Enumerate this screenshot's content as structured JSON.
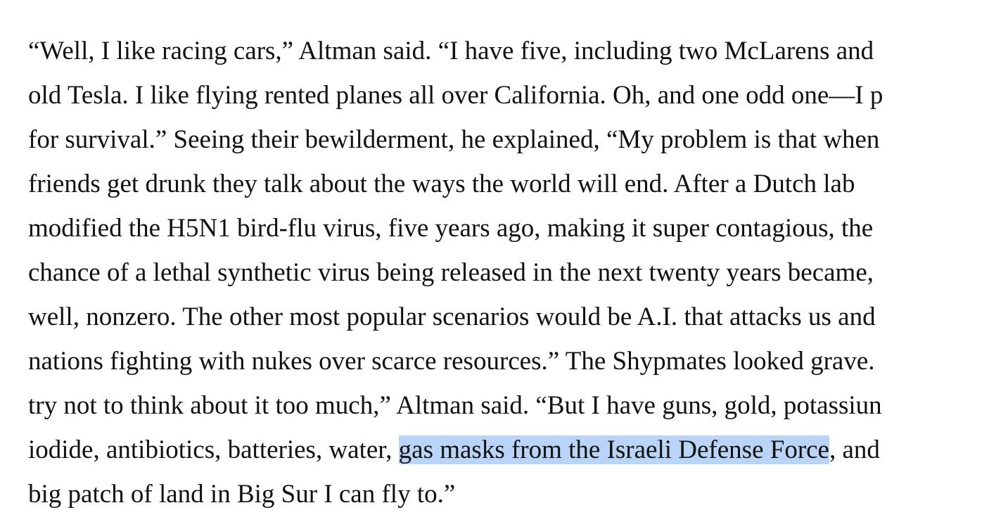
{
  "article": {
    "lines": [
      {
        "text": "“Well, I like racing cars,” Altman said. “I have five, including two McLarens and"
      },
      {
        "text": "old Tesla. I like flying rented planes all over California. Oh, and one odd one—I p"
      },
      {
        "text": "for survival.” Seeing their bewilderment, he explained, “My problem is that when"
      },
      {
        "text": "friends get drunk they talk about the ways the world will end. After a Dutch lab"
      },
      {
        "text": "modified the H5N1 bird-flu virus, five years ago, making it super contagious, the"
      },
      {
        "text": "chance of a lethal synthetic virus being released in the next twenty years became,"
      },
      {
        "text": "well, nonzero. The other most popular scenarios would be A.I. that attacks us and"
      },
      {
        "text": "nations fighting with nukes over scarce resources.” The Shypmates looked grave."
      },
      {
        "text": "try not to think about it too much,” Altman said. “But I have guns, gold, potassiun"
      },
      {
        "before": "iodide, antibiotics, batteries, water, ",
        "selected": "gas masks from the Israeli Defense Force",
        "after": ", and"
      },
      {
        "text": "big patch of land in Big Sur I can fly to.”"
      }
    ],
    "selection_color": "#b9d4f6"
  }
}
